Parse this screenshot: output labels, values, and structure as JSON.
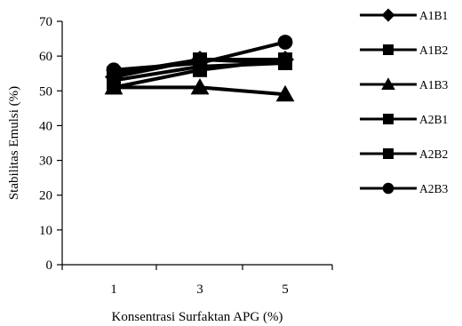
{
  "chart_data": {
    "type": "line",
    "xlabel": "Konsentrasi Surfaktan APG (%)",
    "ylabel": "Stabilitas Emulsi (%)",
    "x": [
      1,
      3,
      5
    ],
    "x_ticks": [
      "1",
      "3",
      "5"
    ],
    "ylim": [
      0,
      70
    ],
    "y_ticks": [
      0,
      10,
      20,
      30,
      40,
      50,
      60,
      70
    ],
    "grid": false,
    "legend_position": "right",
    "line_color": "#000000",
    "series": [
      {
        "name": "A1B1",
        "marker": "diamond",
        "values": [
          54,
          59,
          59
        ]
      },
      {
        "name": "A1B2",
        "marker": "square",
        "values": [
          55,
          59,
          58
        ]
      },
      {
        "name": "A1B3",
        "marker": "triangle",
        "values": [
          51,
          51,
          49
        ]
      },
      {
        "name": "A2B1",
        "marker": "square",
        "values": [
          51,
          56,
          59
        ]
      },
      {
        "name": "A2B2",
        "marker": "square",
        "values": [
          53,
          57,
          58
        ]
      },
      {
        "name": "A2B3",
        "marker": "circle",
        "values": [
          56,
          58,
          64
        ]
      }
    ]
  }
}
